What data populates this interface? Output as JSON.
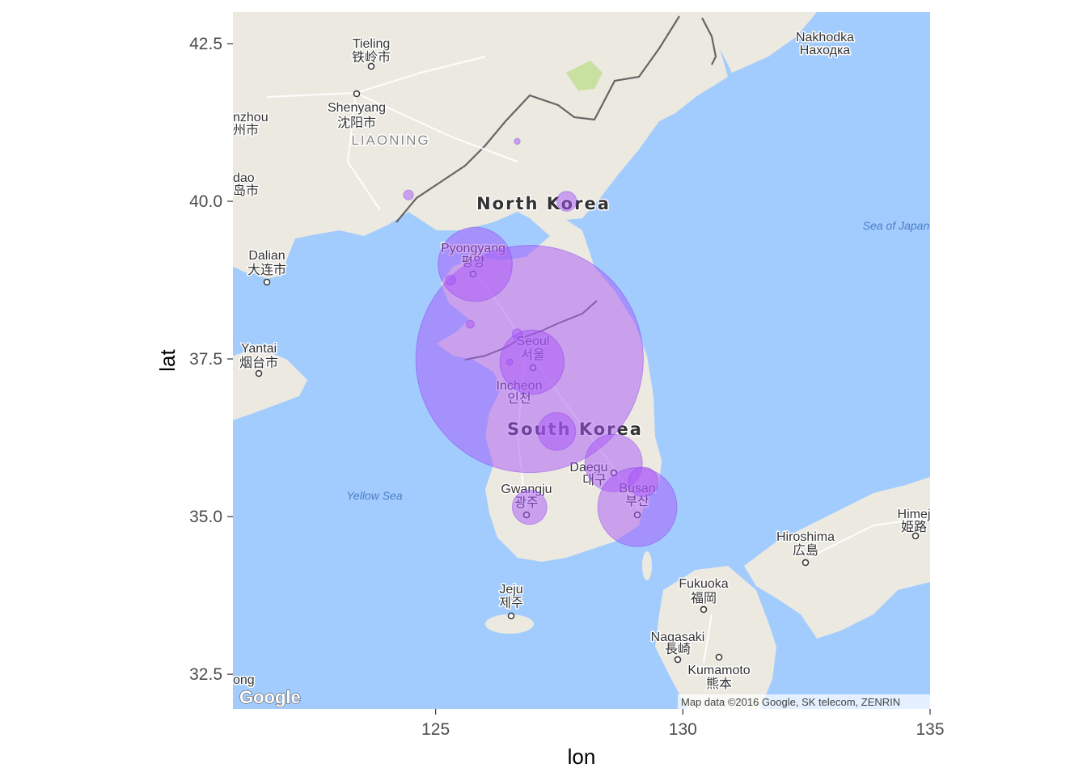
{
  "axes": {
    "x_title": "lon",
    "y_title": "lat",
    "x_ticks": [
      "125",
      "130",
      "135"
    ],
    "y_ticks": [
      "32.5",
      "35.0",
      "37.5",
      "40.0",
      "42.5"
    ]
  },
  "map_labels": {
    "places": [
      "Tieling",
      "铁岭市",
      "Shenyang",
      "沈阳市",
      "Dalian",
      "大连市",
      "Yantai",
      "烟台市",
      "Pyongyang",
      "평양",
      "Seoul",
      "서울",
      "Incheon",
      "인천",
      "Daegu",
      "대구",
      "Busan",
      "부산",
      "Gwangju",
      "광주",
      "Jeju",
      "제주",
      "Fukuoka",
      "福岡",
      "Nagasaki",
      "長崎",
      "Kumamoto",
      "熊本",
      "Hiroshima",
      "広島",
      "Nakhodka",
      "Находка",
      "Himej",
      "姫路",
      "nzhou",
      "州市",
      "dao",
      "岛市",
      "ong"
    ],
    "countries": [
      "North Korea",
      "South Korea"
    ],
    "regions": [
      "LIAONING"
    ],
    "seas": [
      "Sea of Japan",
      "Yellow Sea"
    ],
    "attribution": "Map data ©2016 Google, SK telecom, ZENRIN",
    "logo": "Google"
  },
  "colors": {
    "water": "#a3ccfe",
    "land": "#ece9e0",
    "bubble_fill": "#a855f7",
    "bubble_outline": "#7c3aed"
  },
  "chart_data": {
    "type": "scatter",
    "title": "",
    "xlabel": "lon",
    "ylabel": "lat",
    "xlim": [
      120.9,
      135.0
    ],
    "ylim": [
      31.95,
      43.0
    ],
    "x_ticks": [
      125,
      130,
      135
    ],
    "y_ticks": [
      32.5,
      35.0,
      37.5,
      40.0,
      42.5
    ],
    "size_by": "radius in map units",
    "series": [
      {
        "points": [
          {
            "lon": 126.9,
            "lat": 37.5,
            "r": 2.3
          },
          {
            "lon": 125.8,
            "lat": 39.0,
            "r": 0.75
          },
          {
            "lon": 126.95,
            "lat": 37.45,
            "r": 0.65
          },
          {
            "lon": 128.6,
            "lat": 35.85,
            "r": 0.58
          },
          {
            "lon": 129.08,
            "lat": 35.15,
            "r": 0.8
          },
          {
            "lon": 126.9,
            "lat": 35.15,
            "r": 0.35
          },
          {
            "lon": 127.45,
            "lat": 36.35,
            "r": 0.38
          },
          {
            "lon": 127.65,
            "lat": 40.0,
            "r": 0.2
          },
          {
            "lon": 129.2,
            "lat": 35.55,
            "r": 0.3
          },
          {
            "lon": 126.65,
            "lat": 37.9,
            "r": 0.1
          },
          {
            "lon": 125.7,
            "lat": 38.05,
            "r": 0.08
          },
          {
            "lon": 125.3,
            "lat": 38.75,
            "r": 0.1
          },
          {
            "lon": 124.45,
            "lat": 40.1,
            "r": 0.1
          },
          {
            "lon": 126.65,
            "lat": 40.95,
            "r": 0.06
          },
          {
            "lon": 126.5,
            "lat": 37.45,
            "r": 0.06
          }
        ]
      }
    ]
  }
}
